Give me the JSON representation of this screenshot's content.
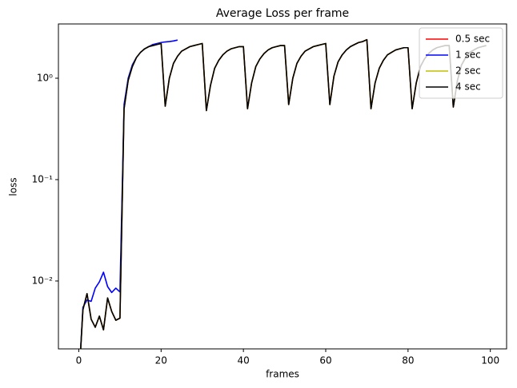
{
  "chart_data": {
    "type": "line",
    "title": "Average Loss per frame",
    "x_label": "frames",
    "y_label": "loss",
    "log_y": true,
    "legend": "upper right",
    "xlim": [
      -4.95,
      103.95
    ],
    "xticks": [
      0,
      20,
      40,
      60,
      80,
      100
    ],
    "ylim": [
      0.00214,
      3.43
    ],
    "yticks": [
      {
        "value": 0.01,
        "label": "10⁻²"
      },
      {
        "value": 0.1,
        "label": "10⁻¹"
      },
      {
        "value": 1,
        "label": "10⁰"
      }
    ],
    "series": [
      {
        "name": "0.5 sec",
        "color": "#ff0000",
        "x": [
          0,
          1,
          2,
          3,
          4,
          5,
          6,
          7,
          8,
          9,
          10,
          11,
          12,
          13,
          14,
          15,
          16,
          17,
          18,
          19,
          20,
          21,
          22,
          23,
          24,
          25,
          26,
          27,
          28,
          29,
          30,
          31,
          32,
          33,
          34,
          35,
          36,
          37,
          38,
          39,
          40,
          41,
          42,
          43,
          44,
          45,
          46,
          47,
          48,
          49,
          50,
          51,
          52,
          53,
          54,
          55,
          56,
          57,
          58,
          59,
          60,
          61,
          62,
          63,
          64,
          65,
          66,
          67,
          68,
          69,
          70,
          71,
          72,
          73,
          74,
          75,
          76,
          77,
          78,
          79,
          80,
          81,
          82,
          83,
          84,
          85,
          86,
          87,
          88,
          89,
          90,
          91,
          92,
          93,
          94,
          95,
          96,
          97,
          98,
          99
        ],
        "values": [
          0.001,
          0.0052,
          0.0075,
          0.0042,
          0.0035,
          0.0045,
          0.0033,
          0.0068,
          0.005,
          0.0041,
          0.0043,
          0.5,
          0.95,
          1.3,
          1.6,
          1.8,
          1.95,
          2.05,
          2.1,
          2.15,
          2.2,
          0.53,
          1.0,
          1.4,
          1.65,
          1.85,
          1.95,
          2.05,
          2.1,
          2.15,
          2.2,
          0.48,
          0.85,
          1.25,
          1.5,
          1.7,
          1.85,
          1.95,
          2.0,
          2.05,
          2.05,
          0.5,
          0.9,
          1.3,
          1.55,
          1.75,
          1.9,
          2.0,
          2.05,
          2.1,
          2.1,
          0.55,
          1.0,
          1.4,
          1.65,
          1.85,
          1.95,
          2.05,
          2.1,
          2.15,
          2.2,
          0.55,
          1.05,
          1.45,
          1.7,
          1.9,
          2.05,
          2.15,
          2.25,
          2.3,
          2.4,
          0.5,
          0.9,
          1.25,
          1.5,
          1.7,
          1.8,
          1.9,
          1.95,
          2.0,
          2.0,
          0.5,
          0.9,
          1.3,
          1.55,
          1.75,
          1.9,
          2.0,
          2.05,
          2.1,
          2.1,
          0.52,
          0.95,
          1.35,
          1.6,
          1.8,
          1.9,
          2.0,
          2.05,
          2.1
        ]
      },
      {
        "name": "1 sec",
        "color": "#0000ff",
        "x": [
          0,
          1,
          2,
          3,
          4,
          5,
          6,
          7,
          8,
          9,
          10,
          11,
          12,
          13,
          14,
          15,
          16,
          17,
          18,
          19,
          20,
          21,
          22,
          23,
          24
        ],
        "values": [
          0.001,
          0.0055,
          0.0065,
          0.0063,
          0.0085,
          0.0098,
          0.0122,
          0.0088,
          0.0077,
          0.0085,
          0.0078,
          0.55,
          1.0,
          1.35,
          1.6,
          1.8,
          1.95,
          2.05,
          2.15,
          2.2,
          2.25,
          2.28,
          2.3,
          2.33,
          2.38
        ]
      },
      {
        "name": "2 sec",
        "color": "#bfbf00",
        "x": [
          0,
          1,
          2,
          3,
          4,
          5,
          6,
          7,
          8,
          9,
          10,
          11,
          12,
          13,
          14,
          15,
          16,
          17,
          18,
          19,
          20,
          21,
          22,
          23,
          24,
          25,
          26,
          27,
          28,
          29,
          30,
          31,
          32,
          33,
          34,
          35,
          36,
          37,
          38,
          39,
          40,
          41,
          42,
          43,
          44,
          45,
          46,
          47,
          48,
          49,
          50,
          51,
          52,
          53,
          54,
          55,
          56,
          57,
          58,
          59,
          60,
          61,
          62,
          63,
          64,
          65,
          66,
          67,
          68,
          69,
          70,
          71,
          72,
          73,
          74,
          75,
          76,
          77,
          78,
          79,
          80,
          81,
          82,
          83,
          84,
          85,
          86,
          87,
          88,
          89,
          90,
          91,
          92,
          93,
          94,
          95,
          96,
          97,
          98,
          99
        ],
        "values": [
          0.001,
          0.0052,
          0.0075,
          0.0042,
          0.0035,
          0.0045,
          0.0033,
          0.0068,
          0.005,
          0.0041,
          0.0043,
          0.5,
          0.95,
          1.3,
          1.6,
          1.8,
          1.95,
          2.05,
          2.1,
          2.15,
          2.2,
          0.53,
          1.0,
          1.4,
          1.65,
          1.85,
          1.95,
          2.05,
          2.1,
          2.15,
          2.2,
          0.48,
          0.85,
          1.25,
          1.5,
          1.7,
          1.85,
          1.95,
          2.0,
          2.05,
          2.05,
          0.5,
          0.9,
          1.3,
          1.55,
          1.75,
          1.9,
          2.0,
          2.05,
          2.1,
          2.1,
          0.55,
          1.0,
          1.4,
          1.65,
          1.85,
          1.95,
          2.05,
          2.1,
          2.15,
          2.2,
          0.55,
          1.05,
          1.45,
          1.7,
          1.9,
          2.05,
          2.15,
          2.25,
          2.3,
          2.4,
          0.5,
          0.9,
          1.25,
          1.5,
          1.7,
          1.8,
          1.9,
          1.95,
          2.0,
          2.0,
          0.5,
          0.9,
          1.3,
          1.55,
          1.75,
          1.9,
          2.0,
          2.05,
          2.1,
          2.1,
          0.52,
          0.95,
          1.35,
          1.6,
          1.8,
          1.9,
          2.0,
          2.05,
          2.1
        ]
      },
      {
        "name": "4 sec",
        "color": "#000000",
        "x": [
          0,
          1,
          2,
          3,
          4,
          5,
          6,
          7,
          8,
          9,
          10,
          11,
          12,
          13,
          14,
          15,
          16,
          17,
          18,
          19,
          20,
          21,
          22,
          23,
          24,
          25,
          26,
          27,
          28,
          29,
          30,
          31,
          32,
          33,
          34,
          35,
          36,
          37,
          38,
          39,
          40,
          41,
          42,
          43,
          44,
          45,
          46,
          47,
          48,
          49,
          50,
          51,
          52,
          53,
          54,
          55,
          56,
          57,
          58,
          59,
          60,
          61,
          62,
          63,
          64,
          65,
          66,
          67,
          68,
          69,
          70,
          71,
          72,
          73,
          74,
          75,
          76,
          77,
          78,
          79,
          80,
          81,
          82,
          83,
          84,
          85,
          86,
          87,
          88,
          89,
          90,
          91,
          92,
          93,
          94,
          95,
          96,
          97,
          98,
          99
        ],
        "values": [
          0.001,
          0.0052,
          0.0075,
          0.0042,
          0.0035,
          0.0045,
          0.0033,
          0.0068,
          0.005,
          0.0041,
          0.0043,
          0.5,
          0.95,
          1.3,
          1.6,
          1.8,
          1.95,
          2.05,
          2.1,
          2.15,
          2.2,
          0.53,
          1.0,
          1.4,
          1.65,
          1.85,
          1.95,
          2.05,
          2.1,
          2.15,
          2.2,
          0.48,
          0.85,
          1.25,
          1.5,
          1.7,
          1.85,
          1.95,
          2.0,
          2.05,
          2.05,
          0.5,
          0.9,
          1.3,
          1.55,
          1.75,
          1.9,
          2.0,
          2.05,
          2.1,
          2.1,
          0.55,
          1.0,
          1.4,
          1.65,
          1.85,
          1.95,
          2.05,
          2.1,
          2.15,
          2.2,
          0.55,
          1.05,
          1.45,
          1.7,
          1.9,
          2.05,
          2.15,
          2.25,
          2.3,
          2.4,
          0.5,
          0.9,
          1.25,
          1.5,
          1.7,
          1.8,
          1.9,
          1.95,
          2.0,
          2.0,
          0.5,
          0.9,
          1.3,
          1.55,
          1.75,
          1.9,
          2.0,
          2.05,
          2.1,
          2.1,
          0.52,
          0.95,
          1.35,
          1.6,
          1.8,
          1.9,
          2.0,
          2.05,
          2.1
        ]
      }
    ]
  }
}
